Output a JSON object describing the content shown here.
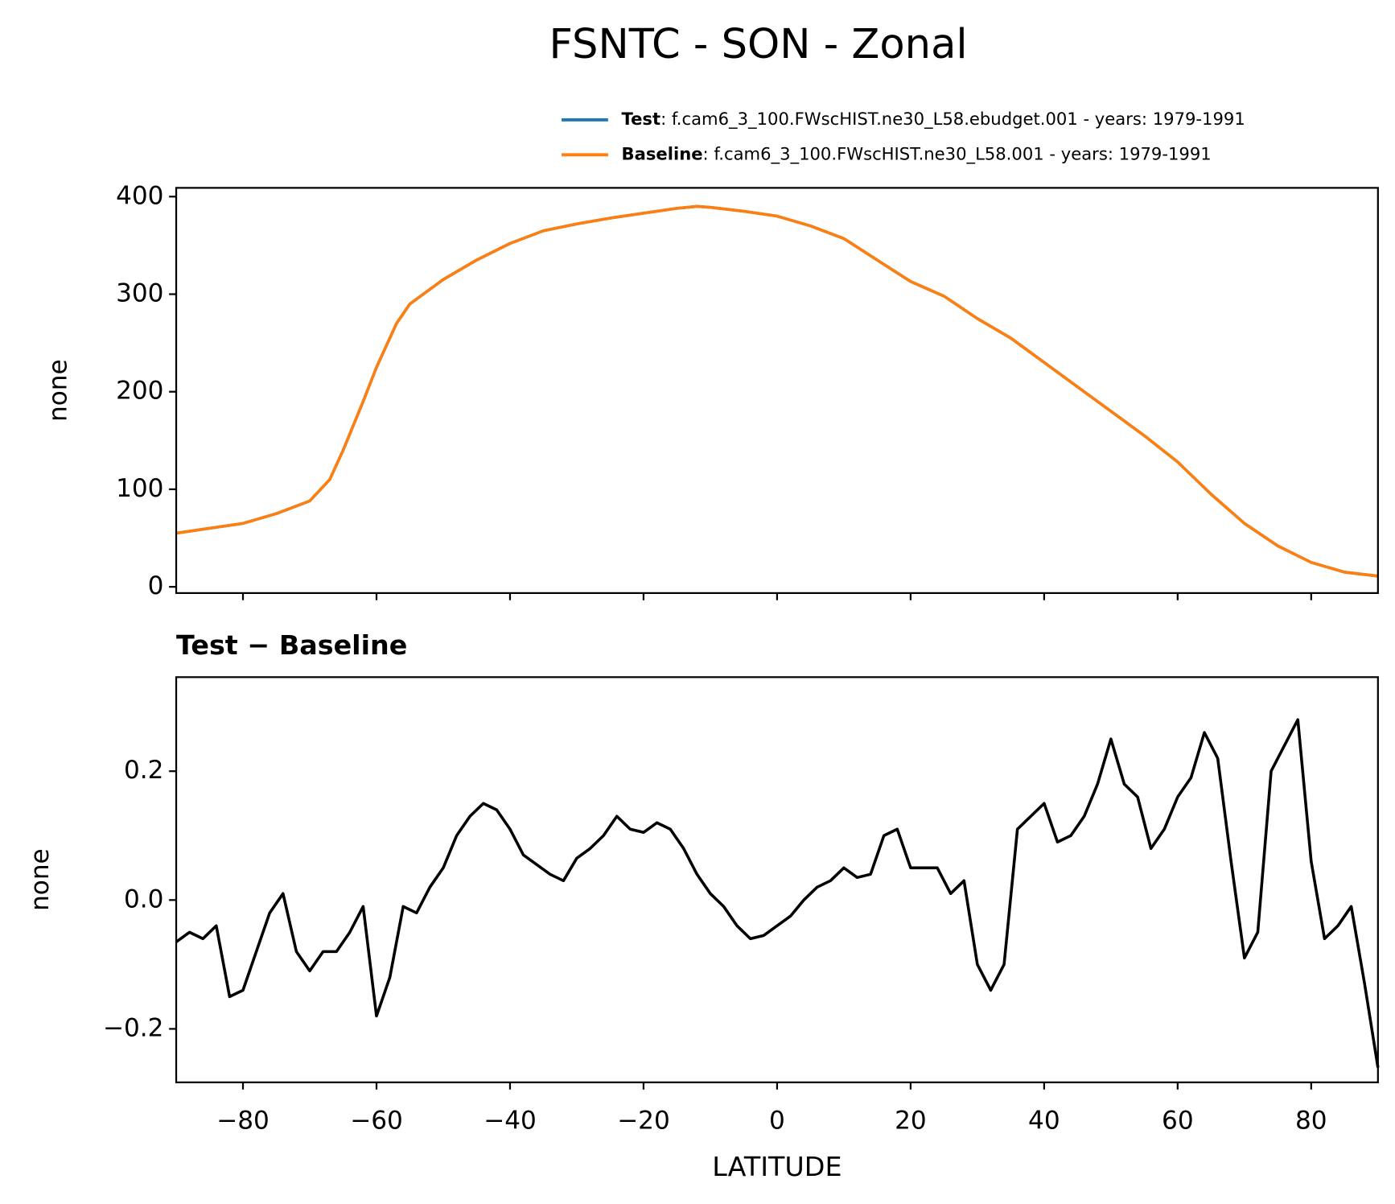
{
  "title": "FSNTC - SON - Zonal",
  "chart_data": [
    {
      "type": "line",
      "ylabel": "none",
      "series": [
        {
          "name": "Test",
          "description": ": f.cam6_3_100.FWscHIST.ne30_L58.ebudget.001 - years: 1979-1991",
          "color": "#1f77b4",
          "values": [
            55,
            60,
            65,
            75,
            88,
            110,
            140,
            190,
            225,
            270,
            290,
            315,
            335,
            352,
            365,
            372,
            378,
            383,
            388,
            390,
            389,
            385,
            380,
            370,
            357,
            335,
            313,
            298,
            275,
            255,
            230,
            205,
            180,
            155,
            128,
            95,
            65,
            42,
            25,
            15,
            11
          ]
        },
        {
          "name": "Baseline",
          "description": ": f.cam6_3_100.FWscHIST.ne30_L58.001 - years: 1979-1991",
          "color": "#ff7f0e",
          "values": [
            55,
            60,
            65,
            75,
            88,
            110,
            140,
            190,
            225,
            270,
            290,
            315,
            335,
            352,
            365,
            372,
            378,
            383,
            388,
            390,
            389,
            385,
            380,
            370,
            357,
            335,
            313,
            298,
            275,
            255,
            230,
            205,
            180,
            155,
            128,
            95,
            65,
            42,
            25,
            15,
            11
          ]
        }
      ],
      "x": [
        -90,
        -85,
        -80,
        -75,
        -70,
        -67,
        -65,
        -62,
        -60,
        -57,
        -55,
        -50,
        -45,
        -40,
        -35,
        -30,
        -25,
        -20,
        -15,
        -12,
        -10,
        -5,
        0,
        5,
        10,
        15,
        20,
        25,
        30,
        35,
        40,
        45,
        50,
        55,
        60,
        65,
        70,
        75,
        80,
        85,
        90
      ],
      "xlim": [
        -90,
        90
      ],
      "xticks": [
        -80,
        -60,
        -40,
        -20,
        0,
        20,
        40,
        60,
        80
      ],
      "ylim": [
        -6.4,
        409
      ],
      "yticks": [
        0,
        100,
        200,
        300,
        400
      ]
    },
    {
      "type": "line",
      "title": "Test − Baseline",
      "ylabel": "none",
      "xlabel": "LATITUDE",
      "series": [
        {
          "name": "Test − Baseline",
          "color": "#000000",
          "values": [
            -0.065,
            -0.05,
            -0.06,
            -0.04,
            -0.15,
            -0.14,
            -0.08,
            -0.02,
            0.01,
            -0.08,
            -0.11,
            -0.08,
            -0.08,
            -0.05,
            -0.01,
            -0.18,
            -0.12,
            -0.01,
            -0.02,
            0.02,
            0.05,
            0.1,
            0.13,
            0.15,
            0.14,
            0.11,
            0.07,
            0.055,
            0.04,
            0.03,
            0.065,
            0.08,
            0.1,
            0.13,
            0.11,
            0.105,
            0.12,
            0.11,
            0.08,
            0.04,
            0.01,
            -0.01,
            -0.04,
            -0.06,
            -0.055,
            -0.04,
            -0.025,
            0.0,
            0.02,
            0.03,
            0.05,
            0.035,
            0.04,
            0.1,
            0.11,
            0.05,
            0.05,
            0.05,
            0.01,
            0.03,
            -0.1,
            -0.14,
            -0.1,
            0.11,
            0.13,
            0.15,
            0.09,
            0.1,
            0.13,
            0.18,
            0.25,
            0.18,
            0.16,
            0.08,
            0.11,
            0.16,
            0.19,
            0.26,
            0.22,
            0.06,
            -0.09,
            -0.05,
            0.2,
            0.24,
            0.28,
            0.06,
            -0.06,
            -0.04,
            -0.01,
            -0.13,
            -0.26
          ]
        }
      ],
      "x": [
        -90,
        -88,
        -86,
        -84,
        -82,
        -80,
        -78,
        -76,
        -74,
        -72,
        -70,
        -68,
        -66,
        -64,
        -62,
        -60,
        -58,
        -56,
        -54,
        -52,
        -50,
        -48,
        -46,
        -44,
        -42,
        -40,
        -38,
        -36,
        -34,
        -32,
        -30,
        -28,
        -26,
        -24,
        -22,
        -20,
        -18,
        -16,
        -14,
        -12,
        -10,
        -8,
        -6,
        -4,
        -2,
        0,
        2,
        4,
        6,
        8,
        10,
        12,
        14,
        16,
        18,
        20,
        22,
        24,
        26,
        28,
        30,
        32,
        34,
        36,
        38,
        40,
        42,
        44,
        46,
        48,
        50,
        52,
        54,
        56,
        58,
        60,
        62,
        64,
        66,
        68,
        70,
        72,
        74,
        76,
        78,
        80,
        82,
        84,
        86,
        88,
        90
      ],
      "xlim": [
        -90,
        90
      ],
      "xticks": [
        {
          "value": -80,
          "label": "−80"
        },
        {
          "value": -60,
          "label": "−60"
        },
        {
          "value": -40,
          "label": "−40"
        },
        {
          "value": -20,
          "label": "−20"
        },
        0,
        20,
        40,
        60,
        80
      ],
      "ylim": [
        -0.283,
        0.346
      ],
      "yticks": [
        {
          "value": -0.2,
          "label": "−0.2"
        },
        {
          "value": 0,
          "label": "0.0"
        },
        0.2
      ]
    }
  ]
}
